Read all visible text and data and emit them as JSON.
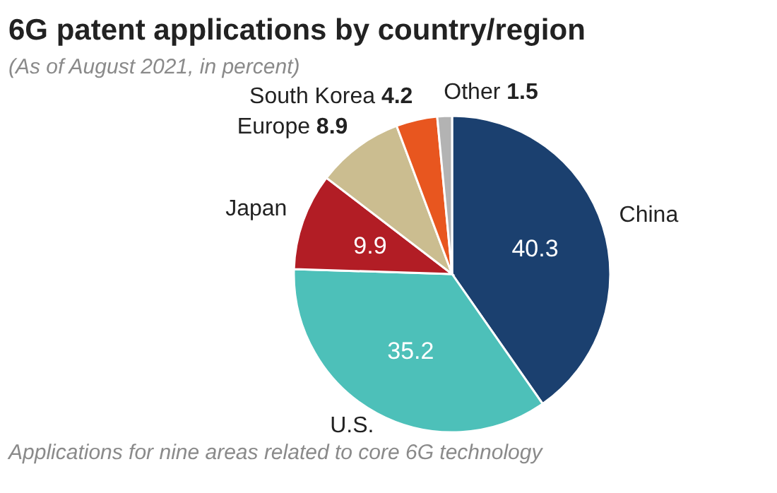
{
  "chart_data": {
    "type": "pie",
    "title": "6G patent applications by country/region",
    "subtitle": "(As of August 2021, in percent)",
    "categories": [
      "China",
      "U.S.",
      "Japan",
      "Europe",
      "South Korea",
      "Other"
    ],
    "values": [
      40.3,
      35.2,
      9.9,
      8.9,
      4.2,
      1.5
    ],
    "colors": [
      "#1b406f",
      "#4dc0b9",
      "#b21d25",
      "#cbbd90",
      "#e8561f",
      "#b3b3b3"
    ],
    "data_labels": true,
    "annotations": [
      "Applications for nine areas related to core 6G technology"
    ]
  }
}
